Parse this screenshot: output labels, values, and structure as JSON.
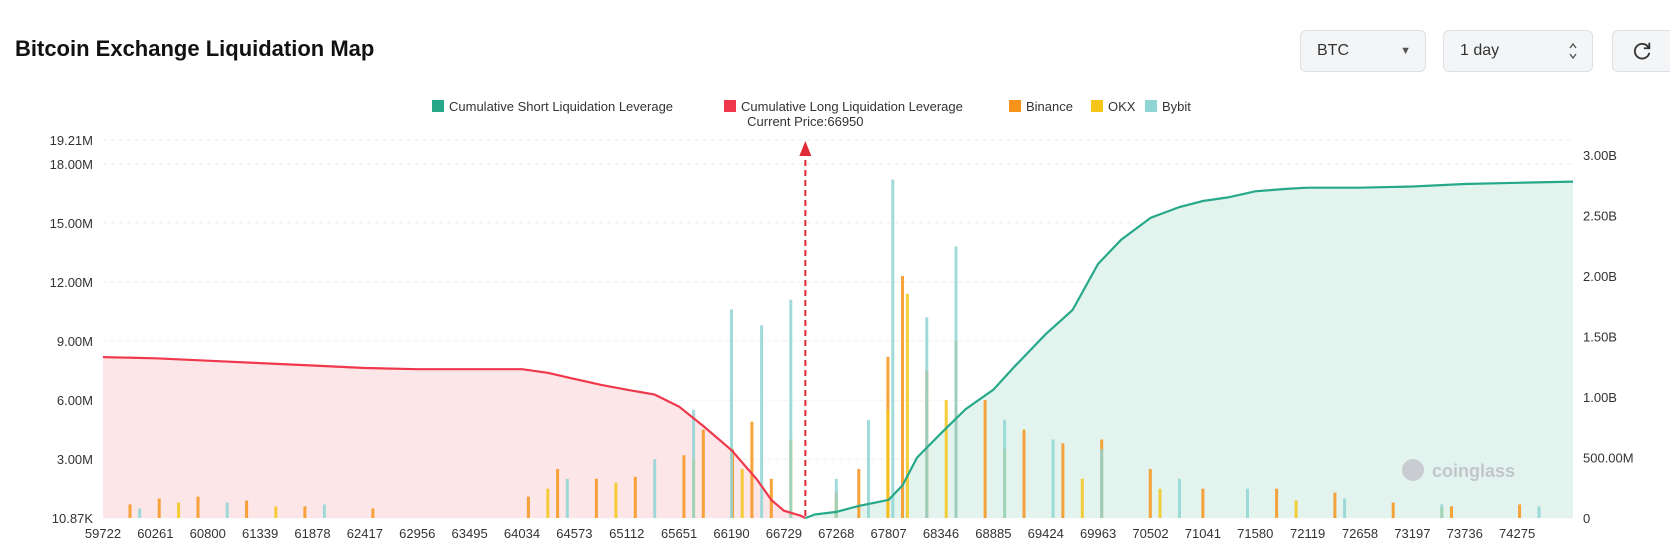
{
  "header": {
    "title": "Bitcoin Exchange Liquidation Map",
    "coin_select": "BTC",
    "range_select": "1 day"
  },
  "colors": {
    "short": "#26a889",
    "long": "#f0384c",
    "binance": "#f7931a",
    "okx": "#f5c518",
    "bybit": "#8fd5d3",
    "short_fill": "#e3f4ef",
    "long_fill": "#fde6e8"
  },
  "chart_data": {
    "type": "bar",
    "legend_placement": "top-center",
    "legend": [
      {
        "name": "Cumulative Short Liquidation Leverage",
        "color": "#26a889"
      },
      {
        "name": "Cumulative Long Liquidation Leverage",
        "color": "#f0384c"
      },
      {
        "name": "Binance",
        "color": "#f7931a"
      },
      {
        "name": "OKX",
        "color": "#f5c518"
      },
      {
        "name": "Bybit",
        "color": "#8fd5d3"
      }
    ],
    "current_price_label": "Current Price:66950",
    "current_price": 66950,
    "x_tick_labels": [
      "59722",
      "60261",
      "60800",
      "61339",
      "61878",
      "62417",
      "62956",
      "63495",
      "64034",
      "64573",
      "65112",
      "65651",
      "66190",
      "66729",
      "67268",
      "67807",
      "68346",
      "68885",
      "69424",
      "69963",
      "70502",
      "71041",
      "71580",
      "72119",
      "72658",
      "73197",
      "73736",
      "74275"
    ],
    "xlim": [
      59722,
      74850
    ],
    "y_left_ticks": [
      "10.87K",
      "3.00M",
      "6.00M",
      "9.00M",
      "12.00M",
      "15.00M",
      "18.00M",
      "19.21M"
    ],
    "y_left_tick_values": [
      10870,
      3000000,
      6000000,
      9000000,
      12000000,
      15000000,
      18000000,
      19210000
    ],
    "y_right_ticks": [
      "0",
      "500.00M",
      "1.00B",
      "1.50B",
      "2.00B",
      "2.50B",
      "3.00B"
    ],
    "y_right_tick_values": [
      0,
      500000000,
      1000000000,
      1500000000,
      2000000000,
      2500000000,
      3000000000
    ],
    "y_left_lim": [
      10870,
      19210000
    ],
    "y_right_lim": [
      0,
      3000000000
    ],
    "grid": true,
    "watermark": "coinglass",
    "series": [
      {
        "name": "Cumulative Long Liquidation Leverage",
        "axis": "right",
        "points": [
          [
            59722,
            1330000000
          ],
          [
            60261,
            1320000000
          ],
          [
            60800,
            1300000000
          ],
          [
            61339,
            1280000000
          ],
          [
            61878,
            1260000000
          ],
          [
            62417,
            1240000000
          ],
          [
            62956,
            1230000000
          ],
          [
            63495,
            1230000000
          ],
          [
            64034,
            1230000000
          ],
          [
            64300,
            1200000000
          ],
          [
            64573,
            1150000000
          ],
          [
            64850,
            1100000000
          ],
          [
            65112,
            1060000000
          ],
          [
            65400,
            1020000000
          ],
          [
            65651,
            920000000
          ],
          [
            65900,
            760000000
          ],
          [
            66190,
            560000000
          ],
          [
            66450,
            320000000
          ],
          [
            66600,
            150000000
          ],
          [
            66729,
            60000000
          ],
          [
            66900,
            20000000
          ],
          [
            66950,
            0
          ]
        ]
      },
      {
        "name": "Cumulative Short Liquidation Leverage",
        "axis": "right",
        "points": [
          [
            66950,
            0
          ],
          [
            67050,
            30000000
          ],
          [
            67268,
            50000000
          ],
          [
            67500,
            100000000
          ],
          [
            67807,
            150000000
          ],
          [
            67950,
            270000000
          ],
          [
            68100,
            500000000
          ],
          [
            68346,
            700000000
          ],
          [
            68600,
            900000000
          ],
          [
            68885,
            1060000000
          ],
          [
            69100,
            1250000000
          ],
          [
            69424,
            1520000000
          ],
          [
            69700,
            1720000000
          ],
          [
            69963,
            2100000000
          ],
          [
            70200,
            2300000000
          ],
          [
            70502,
            2480000000
          ],
          [
            70800,
            2570000000
          ],
          [
            71041,
            2620000000
          ],
          [
            71300,
            2650000000
          ],
          [
            71580,
            2700000000
          ],
          [
            71900,
            2720000000
          ],
          [
            72119,
            2730000000
          ],
          [
            72658,
            2730000000
          ],
          [
            73197,
            2740000000
          ],
          [
            73736,
            2760000000
          ],
          [
            74275,
            2770000000
          ],
          [
            74850,
            2780000000
          ]
        ]
      },
      {
        "name": "Binance",
        "axis": "left",
        "values": [
          [
            60000,
            700000
          ],
          [
            60300,
            1000000
          ],
          [
            60700,
            1100000
          ],
          [
            61200,
            900000
          ],
          [
            61800,
            600000
          ],
          [
            62500,
            500000
          ],
          [
            64100,
            1100000
          ],
          [
            64400,
            2500000
          ],
          [
            64800,
            2000000
          ],
          [
            65200,
            2100000
          ],
          [
            65700,
            3200000
          ],
          [
            65900,
            4500000
          ],
          [
            66200,
            3500000
          ],
          [
            66400,
            4900000
          ],
          [
            66600,
            2000000
          ],
          [
            67268,
            1300000
          ],
          [
            67500,
            2500000
          ],
          [
            67800,
            8200000
          ],
          [
            67950,
            12300000
          ],
          [
            68200,
            7500000
          ],
          [
            68500,
            9000000
          ],
          [
            68800,
            6000000
          ],
          [
            69200,
            4500000
          ],
          [
            69600,
            3800000
          ],
          [
            70000,
            4000000
          ],
          [
            70500,
            2500000
          ],
          [
            71041,
            1500000
          ],
          [
            71800,
            1500000
          ],
          [
            72400,
            1300000
          ],
          [
            73000,
            800000
          ],
          [
            73600,
            600000
          ],
          [
            74300,
            700000
          ]
        ]
      },
      {
        "name": "OKX",
        "axis": "left",
        "values": [
          [
            60500,
            800000
          ],
          [
            61500,
            600000
          ],
          [
            64300,
            1500000
          ],
          [
            65000,
            1800000
          ],
          [
            65800,
            3000000
          ],
          [
            66300,
            2500000
          ],
          [
            66800,
            4000000
          ],
          [
            67268,
            1000000
          ],
          [
            67800,
            5500000
          ],
          [
            68000,
            11400000
          ],
          [
            68400,
            6000000
          ],
          [
            69000,
            3500000
          ],
          [
            69800,
            2000000
          ],
          [
            70600,
            1500000
          ],
          [
            72000,
            900000
          ],
          [
            73500,
            500000
          ]
        ]
      },
      {
        "name": "Bybit",
        "axis": "left",
        "values": [
          [
            60100,
            500000
          ],
          [
            61000,
            800000
          ],
          [
            62000,
            700000
          ],
          [
            64500,
            2000000
          ],
          [
            65400,
            3000000
          ],
          [
            65800,
            5500000
          ],
          [
            66190,
            10600000
          ],
          [
            66500,
            9800000
          ],
          [
            66800,
            11100000
          ],
          [
            67268,
            2000000
          ],
          [
            67600,
            5000000
          ],
          [
            67850,
            17200000
          ],
          [
            68200,
            10200000
          ],
          [
            68500,
            13800000
          ],
          [
            69000,
            5000000
          ],
          [
            69500,
            4000000
          ],
          [
            70000,
            3500000
          ],
          [
            70800,
            2000000
          ],
          [
            71500,
            1500000
          ],
          [
            72500,
            1000000
          ],
          [
            73500,
            700000
          ],
          [
            74500,
            600000
          ]
        ]
      }
    ]
  }
}
